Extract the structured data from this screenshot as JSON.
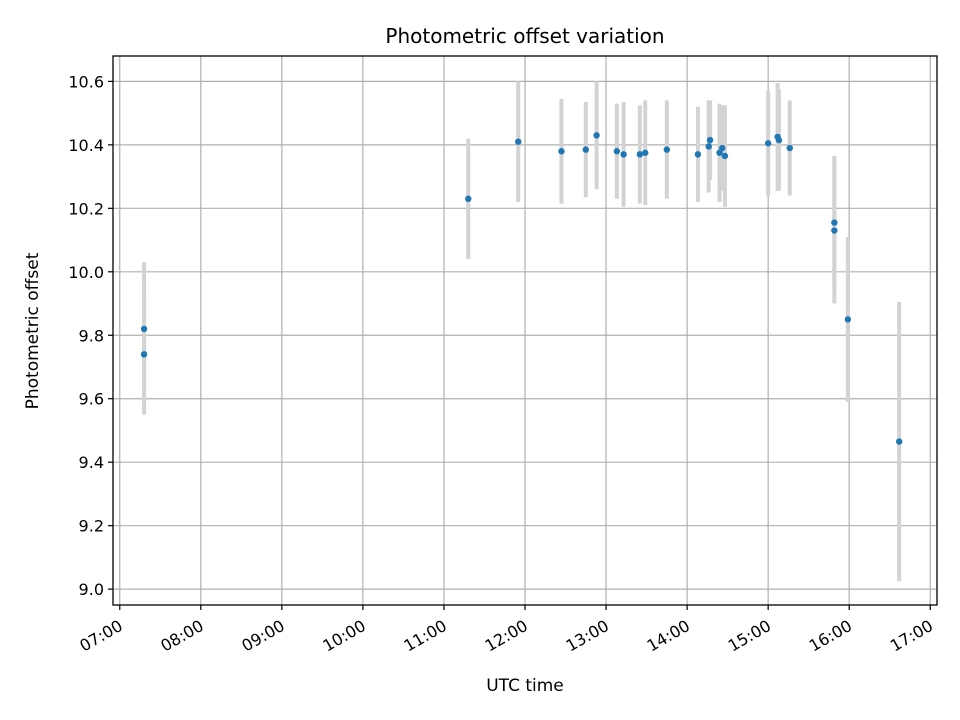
{
  "chart_data": {
    "type": "scatter",
    "title": "Photometric offset variation",
    "xlabel": "UTC time",
    "ylabel": "Photometric offset",
    "x_ticks": [
      "07:00",
      "08:00",
      "09:00",
      "10:00",
      "11:00",
      "12:00",
      "13:00",
      "14:00",
      "15:00",
      "16:00",
      "17:00"
    ],
    "y_ticks": [
      "9.0",
      "9.2",
      "9.4",
      "9.6",
      "9.8",
      "10.0",
      "10.2",
      "10.4",
      "10.6"
    ],
    "xlim": [
      "06:55",
      "17:05"
    ],
    "ylim": [
      8.95,
      10.68
    ],
    "grid": true,
    "point_color": "#1f77b4",
    "errorbar_color": "#d3d3d3",
    "points": [
      {
        "x": "07:18",
        "y": 9.74,
        "err": 0.19
      },
      {
        "x": "07:18",
        "y": 9.82,
        "err": 0.21
      },
      {
        "x": "11:18",
        "y": 10.23,
        "err": 0.19
      },
      {
        "x": "11:55",
        "y": 10.41,
        "err": 0.19
      },
      {
        "x": "12:27",
        "y": 10.38,
        "err": 0.165
      },
      {
        "x": "12:45",
        "y": 10.385,
        "err": 0.15
      },
      {
        "x": "12:53",
        "y": 10.43,
        "err": 0.17
      },
      {
        "x": "13:08",
        "y": 10.38,
        "err": 0.15
      },
      {
        "x": "13:13",
        "y": 10.37,
        "err": 0.165
      },
      {
        "x": "13:25",
        "y": 10.37,
        "err": 0.155
      },
      {
        "x": "13:29",
        "y": 10.375,
        "err": 0.165
      },
      {
        "x": "13:45",
        "y": 10.385,
        "err": 0.155
      },
      {
        "x": "14:08",
        "y": 10.37,
        "err": 0.15
      },
      {
        "x": "14:16",
        "y": 10.395,
        "err": 0.145
      },
      {
        "x": "14:17",
        "y": 10.415,
        "err": 0.125
      },
      {
        "x": "14:24",
        "y": 10.375,
        "err": 0.155
      },
      {
        "x": "14:26",
        "y": 10.39,
        "err": 0.135
      },
      {
        "x": "14:28",
        "y": 10.365,
        "err": 0.16
      },
      {
        "x": "15:00",
        "y": 10.405,
        "err": 0.165
      },
      {
        "x": "15:07",
        "y": 10.425,
        "err": 0.17
      },
      {
        "x": "15:08",
        "y": 10.415,
        "err": 0.16
      },
      {
        "x": "15:16",
        "y": 10.39,
        "err": 0.15
      },
      {
        "x": "15:49",
        "y": 10.155,
        "err": 0.21
      },
      {
        "x": "15:49",
        "y": 10.13,
        "err": 0.23
      },
      {
        "x": "15:59",
        "y": 9.85,
        "err": 0.26
      },
      {
        "x": "16:37",
        "y": 9.465,
        "err": 0.44
      }
    ]
  }
}
